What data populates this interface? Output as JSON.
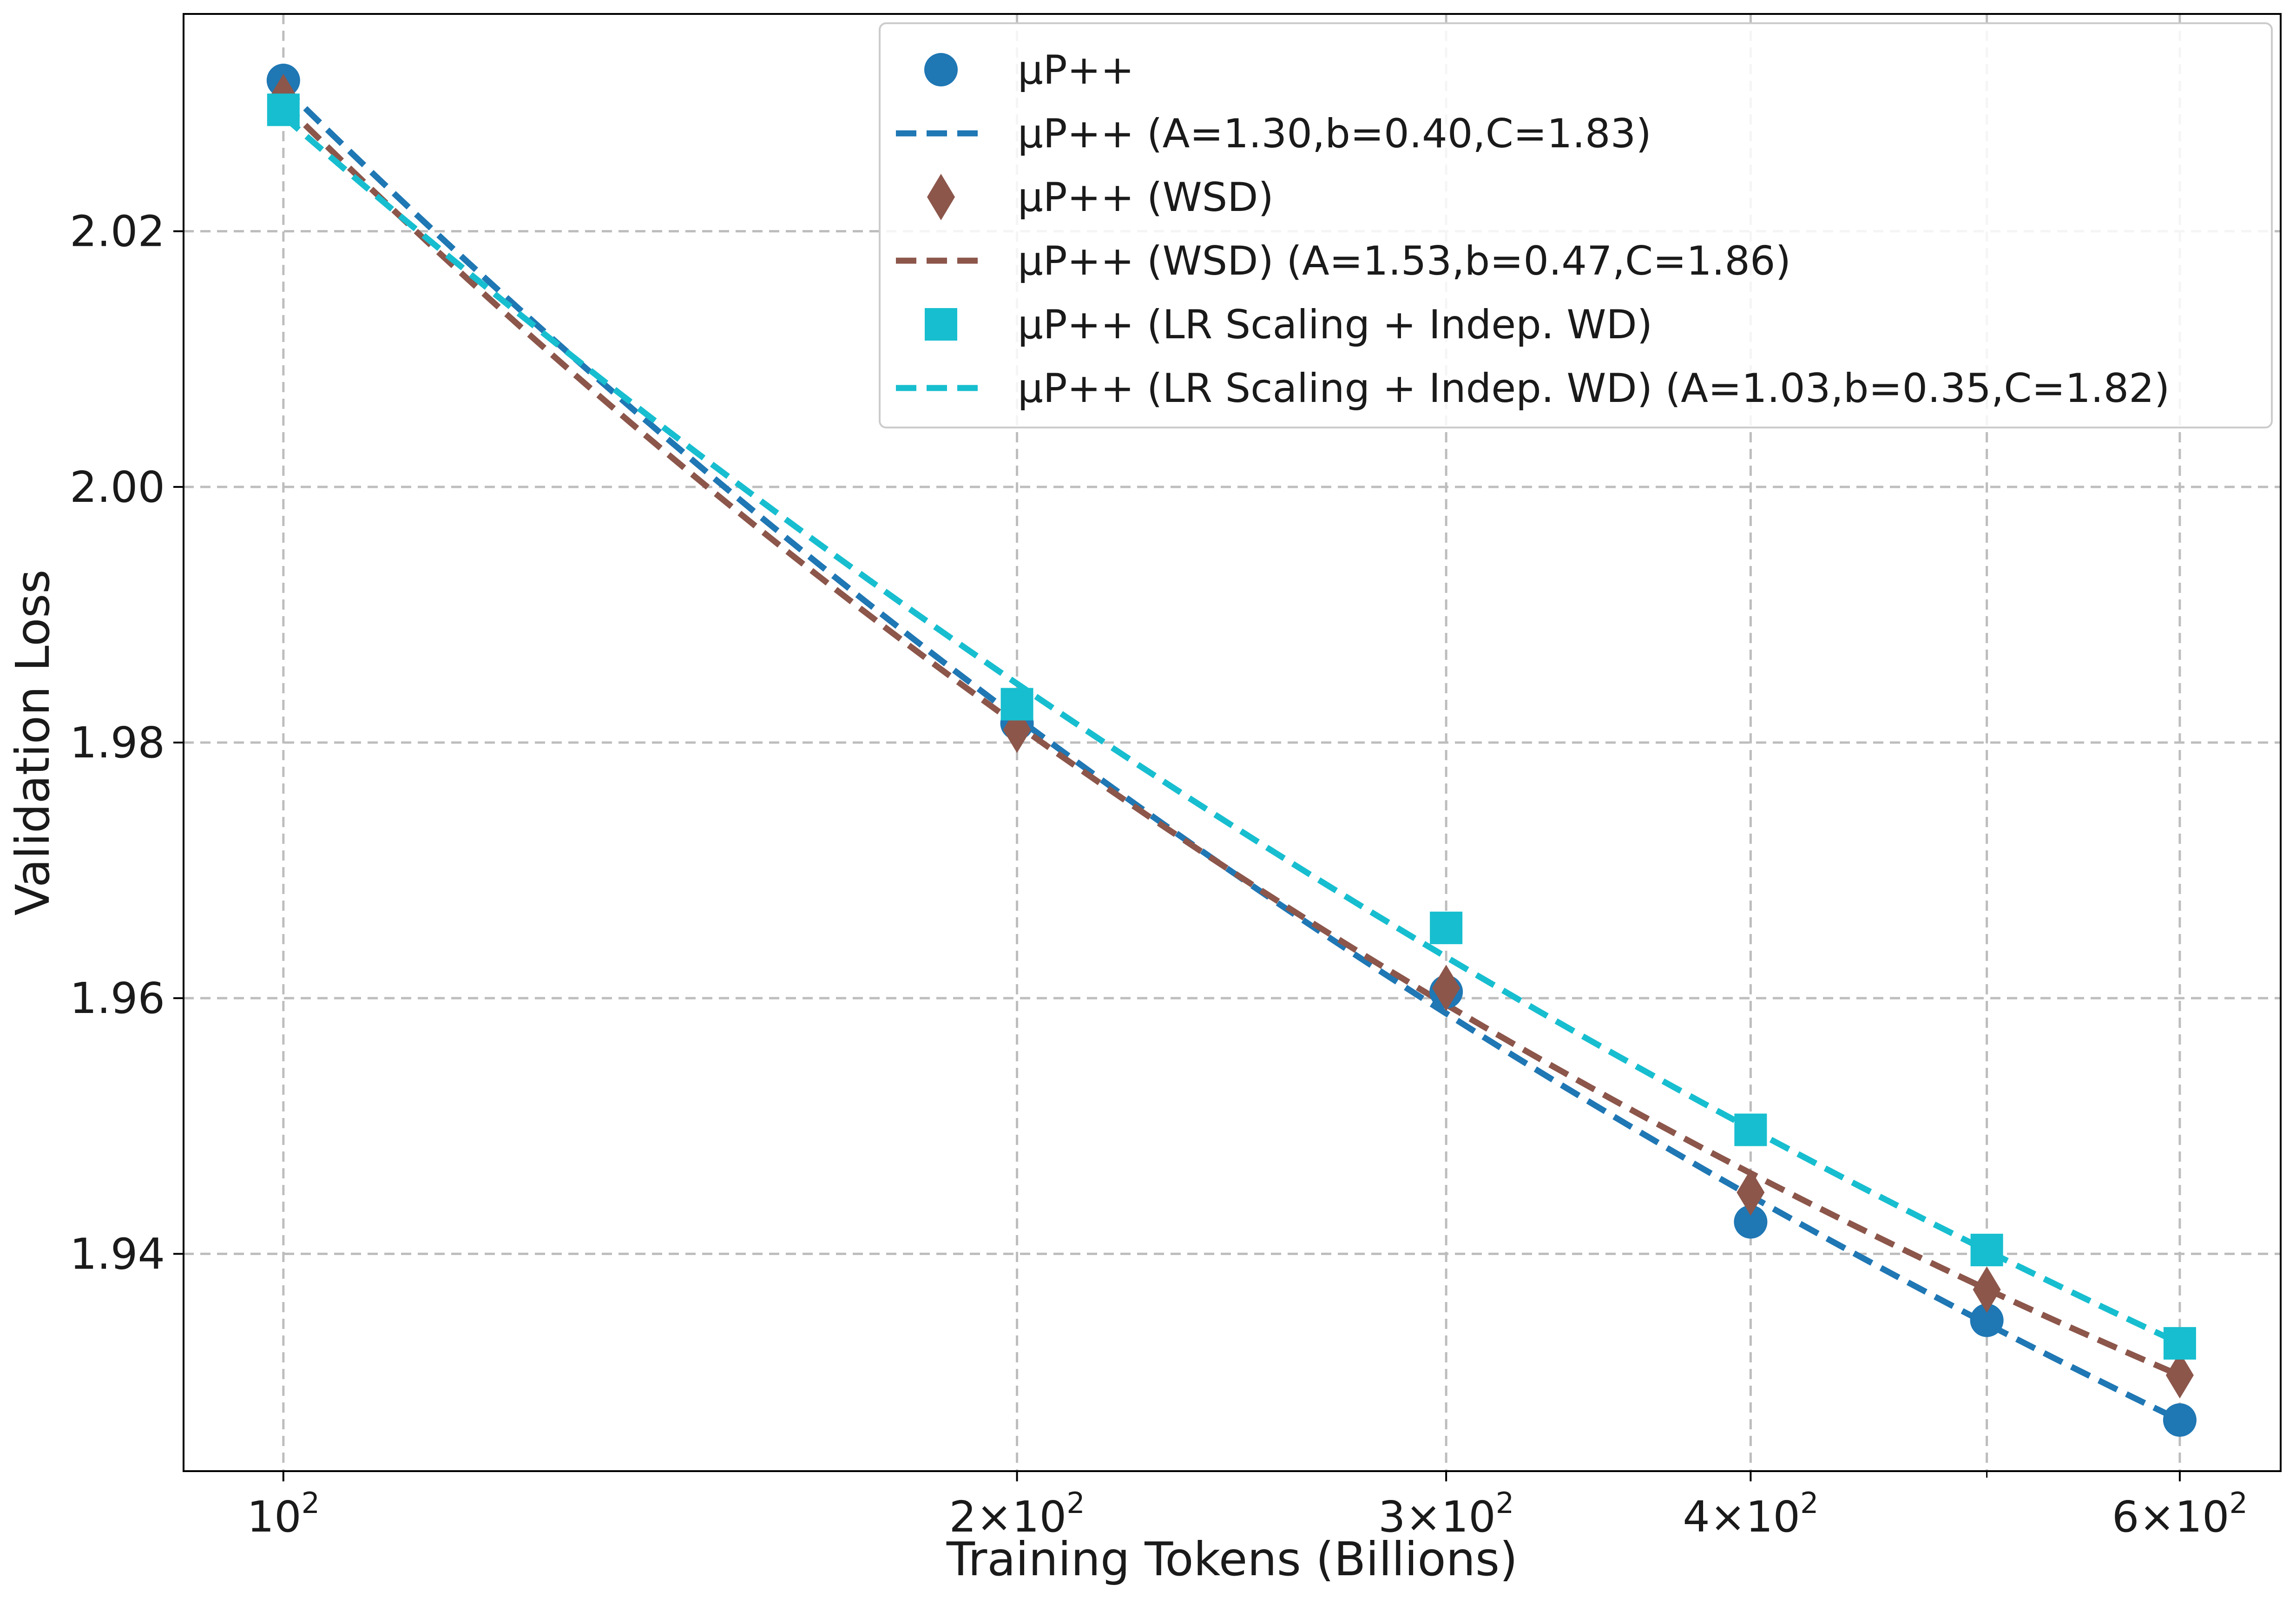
{
  "chart_data": {
    "type": "line",
    "xscale": "log",
    "xlabel": "Training Tokens (Billions)",
    "ylabel": "Validation Loss",
    "xlim": [
      91,
      660
    ],
    "ylim": [
      1.923,
      2.037
    ],
    "grid": true,
    "legend_position": "upper-right",
    "x_ticks": [
      {
        "value": 100,
        "mantissa": "",
        "exponent": "2"
      },
      {
        "value": 200,
        "mantissa": "2",
        "exponent": "2"
      },
      {
        "value": 300,
        "mantissa": "3",
        "exponent": "2"
      },
      {
        "value": 400,
        "mantissa": "4",
        "exponent": "2"
      },
      {
        "value": 600,
        "mantissa": "6",
        "exponent": "2"
      }
    ],
    "x_minor_ticks": [
      500
    ],
    "y_ticks": [
      {
        "value": 1.94,
        "label": "1.94"
      },
      {
        "value": 1.96,
        "label": "1.96"
      },
      {
        "value": 1.98,
        "label": "1.98"
      },
      {
        "value": 2.0,
        "label": "2.00"
      },
      {
        "value": 2.02,
        "label": "2.02"
      }
    ],
    "x": [
      100,
      200,
      300,
      400,
      500,
      600
    ],
    "series": [
      {
        "name": "µP++",
        "marker": "circle",
        "color": "#1f77b4",
        "values": [
          2.0318,
          1.9815,
          1.9605,
          1.9425,
          1.9348,
          1.927
        ]
      },
      {
        "name": "µP++ (WSD)",
        "marker": "diamond",
        "color": "#8c564b",
        "values": [
          2.0305,
          1.981,
          1.9608,
          1.9448,
          1.9372,
          1.9305
        ]
      },
      {
        "name": "µP++ (LR Scaling + Indep. WD)",
        "marker": "square",
        "color": "#17becf",
        "values": [
          2.0295,
          1.983,
          1.9655,
          1.9497,
          1.9403,
          1.933
        ]
      }
    ],
    "fits": [
      {
        "name": "µP++  (A=1.30,b=0.40,C=1.83)",
        "color": "#1f77b4",
        "A": 1.3,
        "b": 0.4,
        "C": 1.83
      },
      {
        "name": "µP++ (WSD) (A=1.53,b=0.47,C=1.86)",
        "color": "#8c564b",
        "A": 1.53,
        "b": 0.47,
        "C": 1.86
      },
      {
        "name": "µP++ (LR Scaling + Indep. WD) (A=1.03,b=0.35,C=1.82)",
        "color": "#17becf",
        "A": 1.03,
        "b": 0.35,
        "C": 1.82
      }
    ],
    "legend": [
      {
        "label": "µP++",
        "kind": "marker",
        "marker": "circle",
        "color": "#1f77b4"
      },
      {
        "label": "µP++  (A=1.30,b=0.40,C=1.83)",
        "kind": "line",
        "color": "#1f77b4"
      },
      {
        "label": "µP++ (WSD)",
        "kind": "marker",
        "marker": "diamond",
        "color": "#8c564b"
      },
      {
        "label": "µP++ (WSD) (A=1.53,b=0.47,C=1.86)",
        "kind": "line",
        "color": "#8c564b"
      },
      {
        "label": "µP++ (LR Scaling + Indep. WD)",
        "kind": "marker",
        "marker": "square",
        "color": "#17becf"
      },
      {
        "label": "µP++ (LR Scaling + Indep. WD) (A=1.03,b=0.35,C=1.82)",
        "kind": "line",
        "color": "#17becf"
      }
    ]
  }
}
